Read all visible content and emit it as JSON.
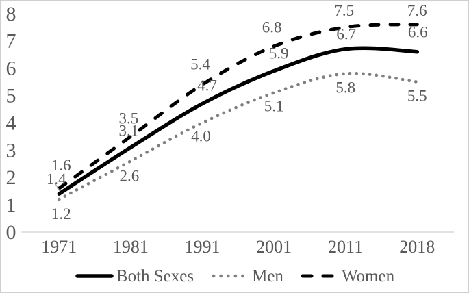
{
  "chart_data": {
    "type": "line",
    "title": "",
    "xlabel": "",
    "ylabel": "",
    "categories": [
      "1971",
      "1981",
      "1991",
      "2001",
      "2011",
      "2018"
    ],
    "series": [
      {
        "name": "Both Sexes",
        "style": "solid",
        "color": "#000000",
        "values": [
          1.4,
          3.1,
          4.7,
          5.9,
          6.7,
          6.6
        ]
      },
      {
        "name": "Men",
        "style": "dotted",
        "color": "#7F7F7F",
        "values": [
          1.2,
          2.6,
          4.0,
          5.1,
          5.8,
          5.5
        ]
      },
      {
        "name": "Women",
        "style": "dashed",
        "color": "#000000",
        "values": [
          1.6,
          3.5,
          5.4,
          6.8,
          7.5,
          7.6
        ]
      }
    ],
    "ylim": [
      0,
      8
    ],
    "yticks": [
      0,
      1,
      2,
      3,
      4,
      5,
      6,
      7,
      8
    ],
    "grid": false,
    "smoothed": true,
    "data_labels": true,
    "legend_position": "bottom",
    "text_color": "#595959",
    "axis_line_color": "#D9D9D9"
  }
}
